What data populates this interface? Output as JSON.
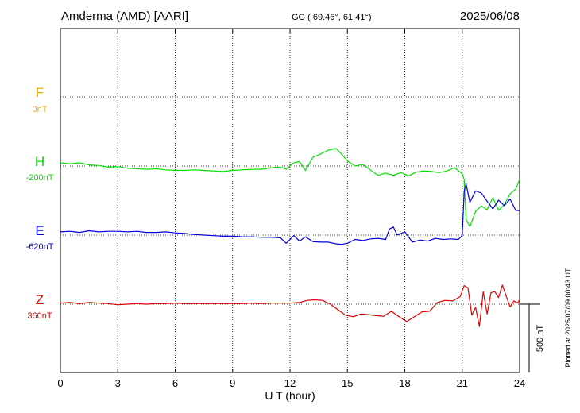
{
  "header": {
    "station": "Amderma (AMD)  [AARI]",
    "coords": "GG ( 69.46°,  61.41°)",
    "date": "2025/06/08"
  },
  "footer_note": "Plotted at 2025/07/09 00:43 UT",
  "scale_label": "500 nT",
  "chart_data": {
    "type": "line",
    "title": "Amderma (AMD)  [AARI]",
    "subtitle": "GG ( 69.46°,  61.41°)",
    "date": "2025/06/08",
    "xlabel": "U T (hour)",
    "xlim": [
      0,
      24
    ],
    "xticks": [
      "0",
      "3",
      "6",
      "9",
      "12",
      "15",
      "18",
      "21",
      "24"
    ],
    "grid": true,
    "scale_bar_nT": 500,
    "series": [
      {
        "name": "F",
        "baseline_label": "0nT",
        "color": "#f0a800",
        "x": [],
        "values": []
      },
      {
        "name": "H",
        "baseline_label": "-200nT",
        "color": "#00e000",
        "x": [
          0,
          0.5,
          1,
          1.5,
          2,
          2.5,
          3,
          3.5,
          4,
          4.5,
          5,
          5.5,
          6,
          6.5,
          7,
          7.5,
          8,
          8.5,
          9,
          9.5,
          10,
          10.5,
          11,
          11.5,
          11.8,
          12.2,
          12.5,
          12.8,
          13.2,
          13.6,
          14,
          14.4,
          14.7,
          15,
          15.4,
          15.8,
          16.2,
          16.6,
          17,
          17.4,
          17.8,
          18.2,
          18.6,
          19,
          19.4,
          19.8,
          20.2,
          20.6,
          21,
          21.1,
          21.2,
          21.4,
          21.7,
          22,
          22.3,
          22.6,
          22.9,
          23.2,
          23.5,
          23.8,
          24
        ],
        "values": [
          -176,
          -184,
          -176,
          -192,
          -196,
          -208,
          -204,
          -216,
          -220,
          -224,
          -220,
          -228,
          -232,
          -232,
          -228,
          -232,
          -236,
          -240,
          -232,
          -228,
          -224,
          -224,
          -212,
          -208,
          -224,
          -176,
          -168,
          -232,
          -136,
          -112,
          -84,
          -72,
          -112,
          -164,
          -200,
          -188,
          -228,
          -268,
          -252,
          -268,
          -248,
          -272,
          -244,
          -236,
          -240,
          -248,
          -236,
          -212,
          -256,
          -300,
          -592,
          -644,
          -532,
          -492,
          -520,
          -432,
          -524,
          -484,
          -404,
          -368,
          -300
        ]
      },
      {
        "name": "E",
        "baseline_label": "-620nT",
        "color": "#0000e0",
        "x": [
          0,
          0.5,
          1,
          1.5,
          2,
          2.5,
          3,
          3.5,
          4,
          4.5,
          5,
          5.5,
          6,
          6.5,
          7,
          7.5,
          8,
          8.5,
          9,
          9.5,
          10,
          10.5,
          11,
          11.5,
          11.8,
          12.2,
          12.5,
          12.8,
          13.2,
          13.6,
          14,
          14.4,
          14.7,
          15,
          15.4,
          15.8,
          16.2,
          16.6,
          17,
          17.2,
          17.4,
          17.6,
          18,
          18.4,
          18.8,
          19.2,
          19.6,
          20,
          20.4,
          20.8,
          21,
          21.1,
          21.2,
          21.4,
          21.7,
          22,
          22.3,
          22.6,
          22.9,
          23.2,
          23.5,
          23.8,
          24
        ],
        "values": [
          -596,
          -592,
          -600,
          -588,
          -596,
          -592,
          -592,
          -596,
          -592,
          -600,
          -600,
          -596,
          -604,
          -608,
          -616,
          -620,
          -624,
          -628,
          -628,
          -632,
          -632,
          -636,
          -636,
          -640,
          -680,
          -624,
          -664,
          -632,
          -668,
          -672,
          -672,
          -684,
          -688,
          -680,
          -652,
          -660,
          -648,
          -644,
          -652,
          -576,
          -560,
          -620,
          -596,
          -672,
          -656,
          -664,
          -644,
          -652,
          -648,
          -652,
          -624,
          -300,
          -244,
          -380,
          -296,
          -312,
          -372,
          -428,
          -364,
          -404,
          -356,
          -440,
          -440
        ]
      },
      {
        "name": "Z",
        "baseline_label": "360nT",
        "color": "#e00000",
        "x": [
          0,
          0.5,
          1,
          1.5,
          2,
          2.5,
          3,
          3.5,
          4,
          4.5,
          5,
          5.5,
          6,
          6.5,
          7,
          7.5,
          8,
          8.5,
          9,
          9.5,
          10,
          10.5,
          11,
          11.5,
          12,
          12.5,
          12.9,
          13.3,
          13.7,
          14.1,
          14.5,
          14.9,
          15.3,
          15.7,
          16.1,
          16.5,
          16.9,
          17.3,
          17.7,
          18.1,
          18.5,
          18.9,
          19.3,
          19.7,
          20.1,
          20.5,
          20.9,
          21.1,
          21.3,
          21.5,
          21.7,
          21.9,
          22.1,
          22.3,
          22.5,
          22.7,
          22.9,
          23.1,
          23.3,
          23.5,
          23.7,
          23.9,
          24
        ],
        "values": [
          368,
          372,
          364,
          372,
          368,
          364,
          356,
          360,
          364,
          360,
          364,
          364,
          368,
          364,
          364,
          364,
          364,
          364,
          364,
          364,
          368,
          364,
          368,
          368,
          368,
          372,
          388,
          392,
          388,
          360,
          320,
          280,
          268,
          288,
          284,
          276,
          272,
          308,
          268,
          232,
          268,
          304,
          308,
          372,
          388,
          384,
          416,
          496,
          480,
          280,
          336,
          196,
          452,
          288,
          444,
          452,
          408,
          500,
          420,
          340,
          384,
          368,
          392
        ]
      }
    ]
  }
}
